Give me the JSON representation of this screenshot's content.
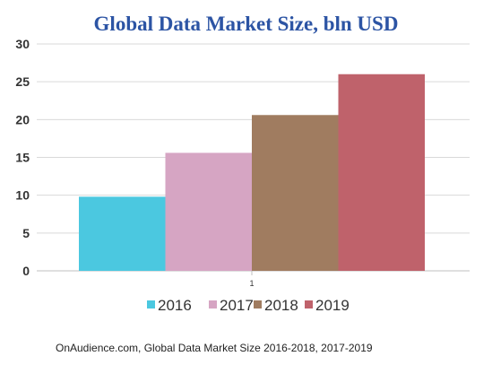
{
  "chart_data": {
    "type": "bar",
    "title": "Global Data Market Size, bln USD",
    "categories": [
      "1"
    ],
    "series": [
      {
        "name": "2016",
        "values": [
          9.8
        ],
        "color": "#4bc8e0"
      },
      {
        "name": "2017",
        "values": [
          15.6
        ],
        "color": "#d6a5c3"
      },
      {
        "name": "2018",
        "values": [
          20.6
        ],
        "color": "#a07c60"
      },
      {
        "name": "2019",
        "values": [
          26.0
        ],
        "color": "#bf626b"
      }
    ],
    "yticks": [
      "0",
      "5",
      "10",
      "15",
      "20",
      "25",
      "30"
    ],
    "ylim": [
      0,
      30
    ],
    "grid": true,
    "legend_position": "bottom",
    "xlabel": "",
    "ylabel": ""
  },
  "source_note": "OnAudience.com, Global Data Market Size 2016-2018, 2017-2019"
}
